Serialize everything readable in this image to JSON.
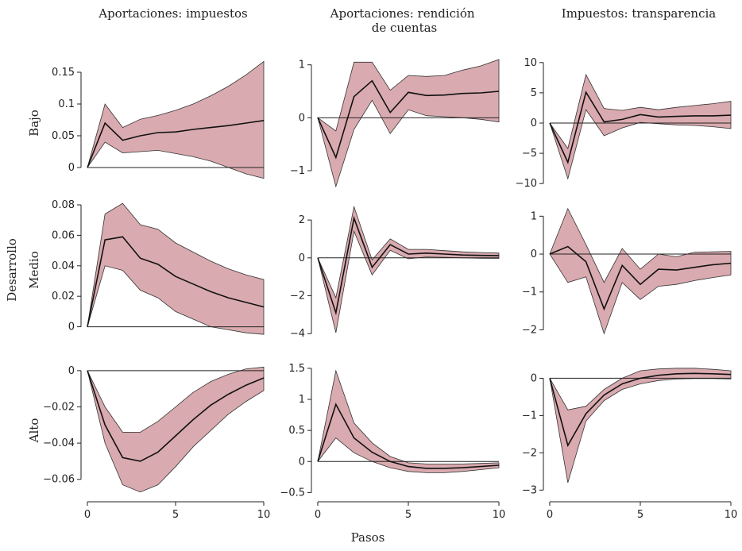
{
  "figure": {
    "xlabel": "Pasos",
    "ylabel_outer": "Desarrollo",
    "column_titles": [
      "Aportaciones: impuestos",
      "Aportaciones: rendición de cuentas",
      "Impuestos: transparencia"
    ],
    "row_labels": [
      "Bajo",
      "Medio",
      "Alto"
    ],
    "band_color": "#d9aaaf",
    "line_color": "#111111"
  },
  "chart_data": [
    {
      "type": "area",
      "row": "Bajo",
      "column": "Aportaciones: impuestos",
      "x": [
        0,
        1,
        2,
        3,
        4,
        5,
        6,
        7,
        8,
        9,
        10
      ],
      "ylim": [
        -0.03,
        0.17
      ],
      "yticks": [
        0,
        0.05,
        0.1,
        0.15
      ],
      "yticklabels": [
        "0",
        "0.05",
        "0.1",
        "0.15"
      ],
      "xticks": [],
      "xticklabels": [],
      "center": [
        0,
        0.07,
        0.043,
        0.05,
        0.055,
        0.056,
        0.06,
        0.063,
        0.066,
        0.07,
        0.074
      ],
      "upper": [
        0,
        0.1,
        0.063,
        0.076,
        0.082,
        0.09,
        0.1,
        0.113,
        0.128,
        0.146,
        0.167
      ],
      "lower": [
        0,
        0.04,
        0.023,
        0.025,
        0.027,
        0.022,
        0.017,
        0.01,
        0.0,
        -0.01,
        -0.017
      ]
    },
    {
      "type": "area",
      "row": "Bajo",
      "column": "Aportaciones: rendición de cuentas",
      "x": [
        0,
        1,
        2,
        3,
        4,
        5,
        6,
        7,
        8,
        9,
        10
      ],
      "ylim": [
        -1.3,
        1.1
      ],
      "yticks": [
        -1,
        0,
        1
      ],
      "yticklabels": [
        "−1",
        "0",
        "1"
      ],
      "xticks": [],
      "xticklabels": [],
      "center": [
        0,
        -0.75,
        0.4,
        0.7,
        0.1,
        0.48,
        0.42,
        0.43,
        0.46,
        0.47,
        0.5
      ],
      "upper": [
        0,
        -0.25,
        1.05,
        1.05,
        0.52,
        0.8,
        0.78,
        0.8,
        0.9,
        0.98,
        1.1
      ],
      "lower": [
        0,
        -1.3,
        -0.22,
        0.33,
        -0.3,
        0.15,
        0.04,
        0.02,
        0.0,
        -0.03,
        -0.08
      ]
    },
    {
      "type": "area",
      "row": "Bajo",
      "column": "Impuestos: transparencia",
      "x": [
        0,
        1,
        2,
        3,
        4,
        5,
        6,
        7,
        8,
        9,
        10
      ],
      "ylim": [
        -10.5,
        10.5
      ],
      "yticks": [
        -10,
        -5,
        0,
        5,
        10
      ],
      "yticklabels": [
        "−10",
        "−5",
        "0",
        "5",
        "10"
      ],
      "xticks": [],
      "xticklabels": [],
      "center": [
        0,
        -6.5,
        5.1,
        0.2,
        0.6,
        1.4,
        1.0,
        1.1,
        1.2,
        1.2,
        1.3
      ],
      "upper": [
        0,
        -4.2,
        8.0,
        2.4,
        2.1,
        2.6,
        2.2,
        2.6,
        2.9,
        3.2,
        3.6
      ],
      "lower": [
        0,
        -9.2,
        2.2,
        -2.1,
        -0.8,
        0.1,
        -0.1,
        -0.3,
        -0.4,
        -0.6,
        -0.9
      ]
    },
    {
      "type": "area",
      "row": "Medio",
      "column": "Aportaciones: impuestos",
      "x": [
        0,
        1,
        2,
        3,
        4,
        5,
        6,
        7,
        8,
        9,
        10
      ],
      "ylim": [
        -0.007,
        0.08
      ],
      "yticks": [
        0,
        0.02,
        0.04,
        0.06,
        0.08
      ],
      "yticklabels": [
        "0",
        "0.02",
        "0.04",
        "0.06",
        "0.08"
      ],
      "xticks": [],
      "xticklabels": [],
      "center": [
        0,
        0.057,
        0.059,
        0.045,
        0.041,
        0.033,
        0.028,
        0.023,
        0.019,
        0.016,
        0.013
      ],
      "upper": [
        0,
        0.074,
        0.081,
        0.067,
        0.064,
        0.055,
        0.049,
        0.043,
        0.038,
        0.034,
        0.031
      ],
      "lower": [
        0,
        0.04,
        0.037,
        0.024,
        0.019,
        0.01,
        0.005,
        0.0,
        -0.002,
        -0.004,
        -0.005
      ]
    },
    {
      "type": "area",
      "row": "Medio",
      "column": "Aportaciones: rendición de cuentas",
      "x": [
        0,
        1,
        2,
        3,
        4,
        5,
        6,
        7,
        8,
        9,
        10
      ],
      "ylim": [
        -4.2,
        2.8
      ],
      "yticks": [
        -4,
        -2,
        0,
        2
      ],
      "yticklabels": [
        "−4",
        "−2",
        "0",
        "2"
      ],
      "xticks": [],
      "xticklabels": [],
      "center": [
        0,
        -2.9,
        2.1,
        -0.5,
        0.7,
        0.2,
        0.25,
        0.2,
        0.15,
        0.13,
        0.12
      ],
      "upper": [
        0,
        -2.1,
        2.7,
        -0.1,
        1.0,
        0.45,
        0.45,
        0.38,
        0.32,
        0.28,
        0.25
      ],
      "lower": [
        0,
        -3.95,
        1.4,
        -0.9,
        0.4,
        -0.05,
        0.05,
        0.03,
        0.0,
        -0.02,
        -0.03
      ]
    },
    {
      "type": "area",
      "row": "Medio",
      "column": "Impuestos: transparencia",
      "x": [
        0,
        1,
        2,
        3,
        4,
        5,
        6,
        7,
        8,
        9,
        10
      ],
      "ylim": [
        -2.2,
        1.3
      ],
      "yticks": [
        -2,
        -1,
        0,
        1
      ],
      "yticklabels": [
        "−2",
        "−1",
        "0",
        "1"
      ],
      "xticks": [],
      "xticklabels": [],
      "center": [
        0,
        0.2,
        -0.2,
        -1.45,
        -0.3,
        -0.8,
        -0.4,
        -0.42,
        -0.35,
        -0.28,
        -0.24
      ],
      "upper": [
        0,
        1.2,
        0.25,
        -0.75,
        0.15,
        -0.4,
        0.0,
        -0.07,
        0.05,
        0.06,
        0.07
      ],
      "lower": [
        0,
        -0.75,
        -0.6,
        -2.1,
        -0.75,
        -1.2,
        -0.85,
        -0.8,
        -0.7,
        -0.62,
        -0.55
      ]
    },
    {
      "type": "area",
      "row": "Alto",
      "column": "Aportaciones: impuestos",
      "x": [
        0,
        1,
        2,
        3,
        4,
        5,
        6,
        7,
        8,
        9,
        10
      ],
      "ylim": [
        -0.068,
        0.003
      ],
      "yticks": [
        -0.06,
        -0.04,
        -0.02,
        0
      ],
      "yticklabels": [
        "−0.06",
        "−0.04",
        "−0.02",
        "0"
      ],
      "xticks": [
        0,
        5,
        10
      ],
      "xticklabels": [
        "0",
        "5",
        "10"
      ],
      "center": [
        0,
        -0.03,
        -0.048,
        -0.05,
        -0.045,
        -0.036,
        -0.027,
        -0.019,
        -0.013,
        -0.008,
        -0.004
      ],
      "upper": [
        0,
        -0.02,
        -0.034,
        -0.034,
        -0.028,
        -0.02,
        -0.012,
        -0.006,
        -0.002,
        0.001,
        0.002
      ],
      "lower": [
        0,
        -0.04,
        -0.063,
        -0.067,
        -0.063,
        -0.053,
        -0.042,
        -0.033,
        -0.024,
        -0.017,
        -0.011
      ]
    },
    {
      "type": "area",
      "row": "Alto",
      "column": "Aportaciones: rendición de cuentas",
      "x": [
        0,
        1,
        2,
        3,
        4,
        5,
        6,
        7,
        8,
        9,
        10
      ],
      "ylim": [
        -0.52,
        1.55
      ],
      "yticks": [
        -0.5,
        0,
        0.5,
        1,
        1.5
      ],
      "yticklabels": [
        "−0.5",
        "0",
        "0.5",
        "1",
        "1.5"
      ],
      "xticks": [
        0,
        5,
        10
      ],
      "xticklabels": [
        "0",
        "5",
        "10"
      ],
      "center": [
        0,
        0.92,
        0.38,
        0.15,
        0.0,
        -0.08,
        -0.11,
        -0.11,
        -0.1,
        -0.08,
        -0.06
      ],
      "upper": [
        0,
        1.46,
        0.62,
        0.3,
        0.08,
        -0.02,
        -0.04,
        -0.04,
        -0.04,
        -0.03,
        -0.02
      ],
      "lower": [
        0,
        0.38,
        0.14,
        0.0,
        -0.1,
        -0.16,
        -0.18,
        -0.18,
        -0.16,
        -0.13,
        -0.1
      ]
    },
    {
      "type": "area",
      "row": "Alto",
      "column": "Impuestos: transparencia",
      "x": [
        0,
        1,
        2,
        3,
        4,
        5,
        6,
        7,
        8,
        9,
        10
      ],
      "ylim": [
        -3.1,
        0.35
      ],
      "yticks": [
        -3,
        -2,
        -1,
        0
      ],
      "yticklabels": [
        "−3",
        "−2",
        "−1",
        "0"
      ],
      "xticks": [
        0,
        5,
        10
      ],
      "xticklabels": [
        "0",
        "5",
        "10"
      ],
      "center": [
        0,
        -1.8,
        -0.95,
        -0.45,
        -0.15,
        0.0,
        0.08,
        0.12,
        0.13,
        0.12,
        0.1
      ],
      "upper": [
        0,
        -0.85,
        -0.75,
        -0.3,
        0.0,
        0.2,
        0.25,
        0.27,
        0.27,
        0.24,
        0.2
      ],
      "lower": [
        0,
        -2.8,
        -1.15,
        -0.6,
        -0.3,
        -0.15,
        -0.06,
        -0.02,
        -0.01,
        -0.01,
        -0.02
      ]
    }
  ]
}
